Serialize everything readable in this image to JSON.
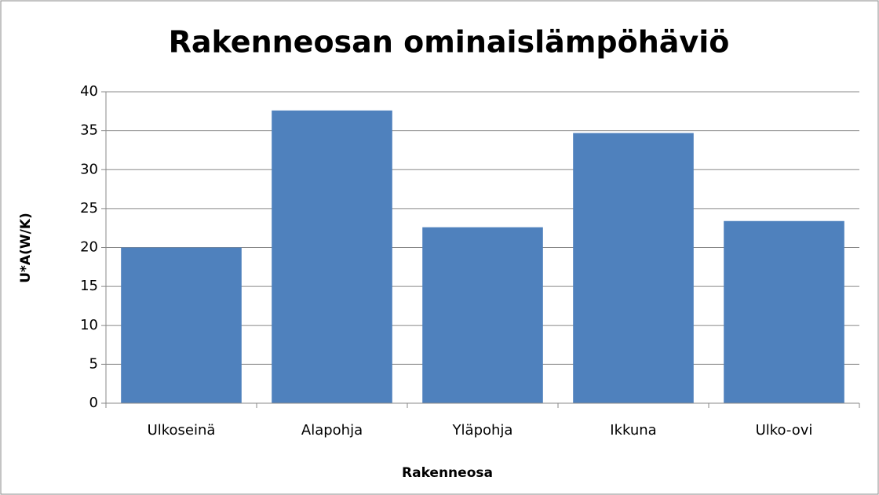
{
  "chart_data": {
    "type": "bar",
    "title": "Rakenneosan ominaislämpöhäviö",
    "x_label": "Rakenneosa",
    "y_label": "U*A(W/K)",
    "categories": [
      "Ulkoseinä",
      "Alapohja",
      "Yläpohja",
      "Ikkuna",
      "Ulko-ovi"
    ],
    "values": [
      20,
      37.6,
      22.6,
      34.7,
      23.4
    ],
    "color": "#4f81bd",
    "ylim": [
      0,
      40
    ],
    "yticks": [
      0,
      5,
      10,
      15,
      20,
      25,
      30,
      35,
      40
    ],
    "grid": true
  }
}
